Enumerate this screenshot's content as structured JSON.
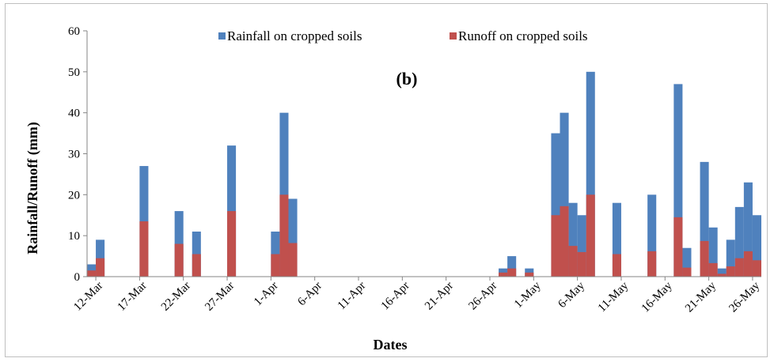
{
  "chart_data": {
    "type": "bar",
    "stacked": "overlay",
    "panel_label": "(b)",
    "xlabel": "Dates",
    "ylabel": "Rainfall/Runoff (mm)",
    "ylim": [
      0,
      60
    ],
    "yticks": [
      0,
      10,
      20,
      30,
      40,
      50,
      60
    ],
    "grid": false,
    "legend_placement": "top",
    "x_tick_labels": [
      "12-Mar",
      "17-Mar",
      "22-Mar",
      "27-Mar",
      "1-Apr",
      "6-Apr",
      "11-Apr",
      "16-Apr",
      "21-Apr",
      "26-Apr",
      "1-May",
      "6-May",
      "11-May",
      "16-May",
      "21-May",
      "26-May"
    ],
    "series": [
      {
        "name": "Rainfall on cropped soils",
        "color": "#4f81bd",
        "points": [
          [
            "2011-03-11",
            3
          ],
          [
            "2011-03-12",
            9
          ],
          [
            "2011-03-17",
            27
          ],
          [
            "2011-03-21",
            16
          ],
          [
            "2011-03-23",
            11
          ],
          [
            "2011-03-27",
            32
          ],
          [
            "2011-04-01",
            11
          ],
          [
            "2011-04-02",
            40
          ],
          [
            "2011-04-03",
            19
          ],
          [
            "2011-04-27",
            2
          ],
          [
            "2011-04-28",
            5
          ],
          [
            "2011-04-30",
            2
          ],
          [
            "2011-05-03",
            35
          ],
          [
            "2011-05-04",
            40
          ],
          [
            "2011-05-05",
            18
          ],
          [
            "2011-05-06",
            15
          ],
          [
            "2011-05-07",
            50
          ],
          [
            "2011-05-10",
            18
          ],
          [
            "2011-05-14",
            20
          ],
          [
            "2011-05-17",
            47
          ],
          [
            "2011-05-18",
            7
          ],
          [
            "2011-05-20",
            28
          ],
          [
            "2011-05-21",
            12
          ],
          [
            "2011-05-22",
            2
          ],
          [
            "2011-05-23",
            9
          ],
          [
            "2011-05-24",
            17
          ],
          [
            "2011-05-25",
            23
          ],
          [
            "2011-05-26",
            15
          ]
        ]
      },
      {
        "name": "Runoff on cropped soils",
        "color": "#c0504d",
        "points": [
          [
            "2011-03-11",
            1.5
          ],
          [
            "2011-03-12",
            4.5
          ],
          [
            "2011-03-17",
            13.5
          ],
          [
            "2011-03-21",
            8
          ],
          [
            "2011-03-23",
            5.5
          ],
          [
            "2011-03-27",
            16
          ],
          [
            "2011-04-01",
            5.5
          ],
          [
            "2011-04-02",
            20
          ],
          [
            "2011-04-03",
            8.2
          ],
          [
            "2011-04-27",
            1
          ],
          [
            "2011-04-28",
            2
          ],
          [
            "2011-04-30",
            1
          ],
          [
            "2011-05-03",
            15
          ],
          [
            "2011-05-04",
            17.2
          ],
          [
            "2011-05-05",
            7.5
          ],
          [
            "2011-05-06",
            6
          ],
          [
            "2011-05-07",
            20
          ],
          [
            "2011-05-10",
            5.5
          ],
          [
            "2011-05-14",
            6.2
          ],
          [
            "2011-05-17",
            14.5
          ],
          [
            "2011-05-18",
            2.2
          ],
          [
            "2011-05-20",
            8.7
          ],
          [
            "2011-05-21",
            3.3
          ],
          [
            "2011-05-22",
            0.7
          ],
          [
            "2011-05-23",
            2.5
          ],
          [
            "2011-05-24",
            4.5
          ],
          [
            "2011-05-25",
            6.2
          ],
          [
            "2011-05-26",
            4
          ]
        ]
      }
    ]
  }
}
